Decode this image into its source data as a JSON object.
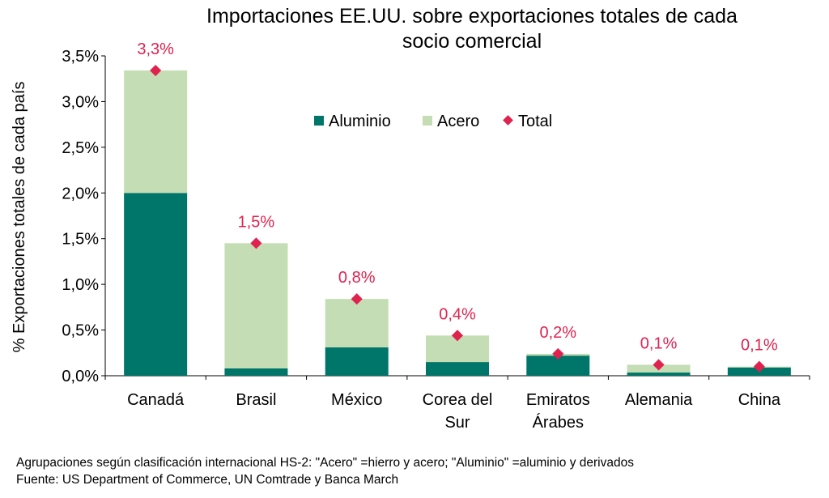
{
  "chart_data": {
    "type": "bar",
    "stacked": true,
    "title_lines": [
      "Importaciones EE.UU. sobre exportaciones totales de cada",
      "socio comercial"
    ],
    "ylabel": "% Exportaciones totales de cada país",
    "xlabel": "",
    "ylim": [
      0,
      3.5
    ],
    "yticks": [
      "0,0%",
      "0,5%",
      "1,0%",
      "1,5%",
      "2,0%",
      "2,5%",
      "3,0%",
      "3,5%"
    ],
    "ytick_values": [
      0,
      0.5,
      1.0,
      1.5,
      2.0,
      2.5,
      3.0,
      3.5
    ],
    "categories": [
      [
        "Canadá"
      ],
      [
        "Brasil"
      ],
      [
        "México"
      ],
      [
        "Corea del",
        "Sur"
      ],
      [
        "Emiratos",
        "Árabes"
      ],
      [
        "Alemania"
      ],
      [
        "China"
      ]
    ],
    "series": [
      {
        "name": "Aluminio",
        "color": "#00766A",
        "values": [
          2.0,
          0.08,
          0.31,
          0.15,
          0.22,
          0.035,
          0.09
        ]
      },
      {
        "name": "Acero",
        "color": "#C4DDB4",
        "values": [
          1.34,
          1.37,
          0.53,
          0.29,
          0.02,
          0.085,
          0.01
        ]
      }
    ],
    "total": {
      "name": "Total",
      "color": "#E0224F",
      "values": [
        3.34,
        1.45,
        0.84,
        0.44,
        0.24,
        0.12,
        0.1
      ],
      "labels": [
        "3,3%",
        "1,5%",
        "0,8%",
        "0,4%",
        "0,2%",
        "0,1%",
        "0,1%"
      ]
    },
    "legend_position": "top-center",
    "grid": false
  },
  "notes": {
    "line1": "Agrupaciones según clasificación internacional HS-2: \"Acero\" =hierro y acero; \"Aluminio\" =aluminio y derivados",
    "line2": "Fuente: US Department of Commerce, UN Comtrade y Banca March"
  }
}
